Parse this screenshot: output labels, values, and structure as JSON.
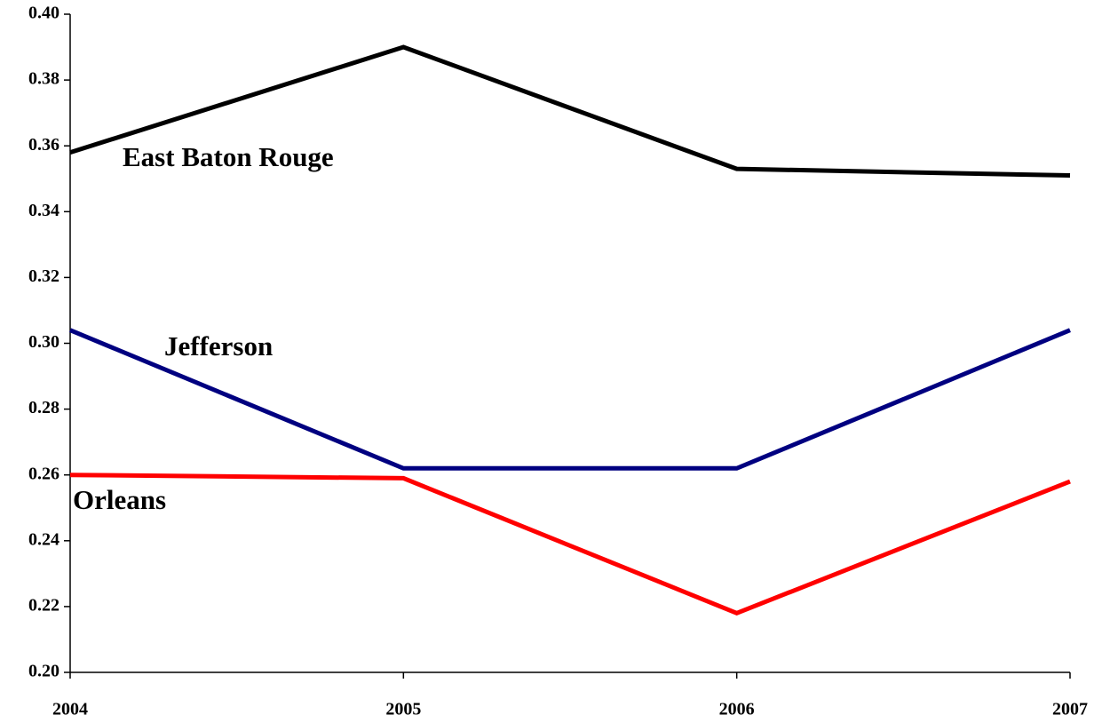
{
  "chart_data": {
    "type": "line",
    "x": [
      2004,
      2005,
      2006,
      2007
    ],
    "xlim": [
      2004,
      2007
    ],
    "xticks": [
      2004,
      2005,
      2006,
      2007
    ],
    "ylim": [
      0.2,
      0.4
    ],
    "yticks": [
      {
        "value": 0.2,
        "label": "0.20"
      },
      {
        "value": 0.22,
        "label": "0.22"
      },
      {
        "value": 0.24,
        "label": "0.24"
      },
      {
        "value": 0.26,
        "label": "0.26"
      },
      {
        "value": 0.28,
        "label": "0.28"
      },
      {
        "value": 0.3,
        "label": "0.30"
      },
      {
        "value": 0.32,
        "label": "0.32"
      },
      {
        "value": 0.34,
        "label": "0.34"
      },
      {
        "value": 0.36,
        "label": "0.36"
      },
      {
        "value": 0.38,
        "label": "0.38"
      },
      {
        "value": 0.4,
        "label": "0.40"
      }
    ],
    "grid": false,
    "series": [
      {
        "name": "East Baton Rouge",
        "color": "#000000",
        "values": [
          0.358,
          0.39,
          0.353,
          0.351
        ]
      },
      {
        "name": "Jefferson",
        "color": "#000080",
        "values": [
          0.304,
          0.262,
          0.262,
          0.304
        ]
      },
      {
        "name": "Orleans",
        "color": "#ff0000",
        "values": [
          0.26,
          0.259,
          0.218,
          0.258
        ]
      }
    ]
  }
}
